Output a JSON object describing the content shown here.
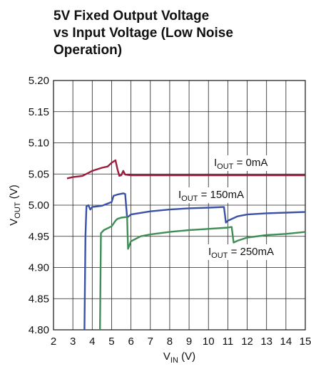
{
  "chart_data": {
    "type": "line",
    "title": [
      "5V Fixed Output Voltage",
      "vs Input Voltage (Low Noise",
      "Operation)"
    ],
    "xlabel": {
      "base": "V",
      "sub": "IN",
      "text": " (V)"
    },
    "ylabel": {
      "base": "V",
      "sub": "OUT",
      "text": " (V)"
    },
    "xlim": [
      2,
      15
    ],
    "ylim": [
      4.8,
      5.2
    ],
    "xticks": [
      2,
      3,
      4,
      5,
      6,
      7,
      8,
      9,
      10,
      11,
      12,
      13,
      14,
      15
    ],
    "yticks": [
      {
        "value": 4.8,
        "label": "4.80"
      },
      {
        "value": 4.85,
        "label": "4.85"
      },
      {
        "value": 4.9,
        "label": "4.90"
      },
      {
        "value": 4.95,
        "label": "4.95"
      },
      {
        "value": 5.0,
        "label": "5.00"
      },
      {
        "value": 5.05,
        "label": "5.05"
      },
      {
        "value": 5.1,
        "label": "5.10"
      },
      {
        "value": 5.15,
        "label": "5.15"
      },
      {
        "value": 5.2,
        "label": "5.20"
      }
    ],
    "grid": true,
    "series": [
      {
        "label": {
          "base": "I",
          "sub": "OUT",
          "text": " = 0mA"
        },
        "color": "#9b1c3c",
        "x": [
          2.7,
          3.0,
          3.5,
          4.0,
          4.5,
          4.8,
          5.0,
          5.2,
          5.3,
          5.4,
          5.5,
          5.6,
          5.7,
          6,
          8,
          10,
          12,
          15
        ],
        "values": [
          5.043,
          5.045,
          5.047,
          5.055,
          5.06,
          5.062,
          5.068,
          5.072,
          5.058,
          5.047,
          5.048,
          5.055,
          5.049,
          5.048,
          5.048,
          5.048,
          5.048,
          5.048
        ]
      },
      {
        "label": {
          "base": "I",
          "sub": "OUT",
          "text": " = 150mA"
        },
        "color": "#3a52a6",
        "x": [
          3.6,
          3.65,
          3.7,
          3.8,
          3.9,
          4.0,
          4.5,
          5.0,
          5.1,
          5.3,
          5.6,
          5.7,
          5.8,
          6,
          7,
          8,
          9,
          10,
          10.8,
          10.9,
          11,
          11.5,
          12,
          13,
          14,
          15
        ],
        "values": [
          4.8,
          4.95,
          4.998,
          5.0,
          4.993,
          4.997,
          4.999,
          5.005,
          5.015,
          5.017,
          5.019,
          5.018,
          4.98,
          4.985,
          4.99,
          4.993,
          4.995,
          4.996,
          4.997,
          4.972,
          4.975,
          4.982,
          4.985,
          4.987,
          4.988,
          4.989
        ]
      },
      {
        "label": {
          "base": "I",
          "sub": "OUT",
          "text": " = 250mA"
        },
        "color": "#3e8e56",
        "x": [
          4.4,
          4.45,
          4.6,
          5.0,
          5.2,
          5.3,
          5.5,
          5.8,
          5.85,
          6.0,
          6.5,
          7,
          8,
          9,
          10,
          11,
          11.2,
          11.3,
          11.5,
          12,
          13,
          14,
          15
        ],
        "values": [
          4.8,
          4.955,
          4.96,
          4.966,
          4.975,
          4.978,
          4.98,
          4.981,
          4.93,
          4.942,
          4.95,
          4.953,
          4.957,
          4.96,
          4.962,
          4.964,
          4.965,
          4.94,
          4.943,
          4.948,
          4.952,
          4.954,
          4.957
        ]
      }
    ]
  }
}
